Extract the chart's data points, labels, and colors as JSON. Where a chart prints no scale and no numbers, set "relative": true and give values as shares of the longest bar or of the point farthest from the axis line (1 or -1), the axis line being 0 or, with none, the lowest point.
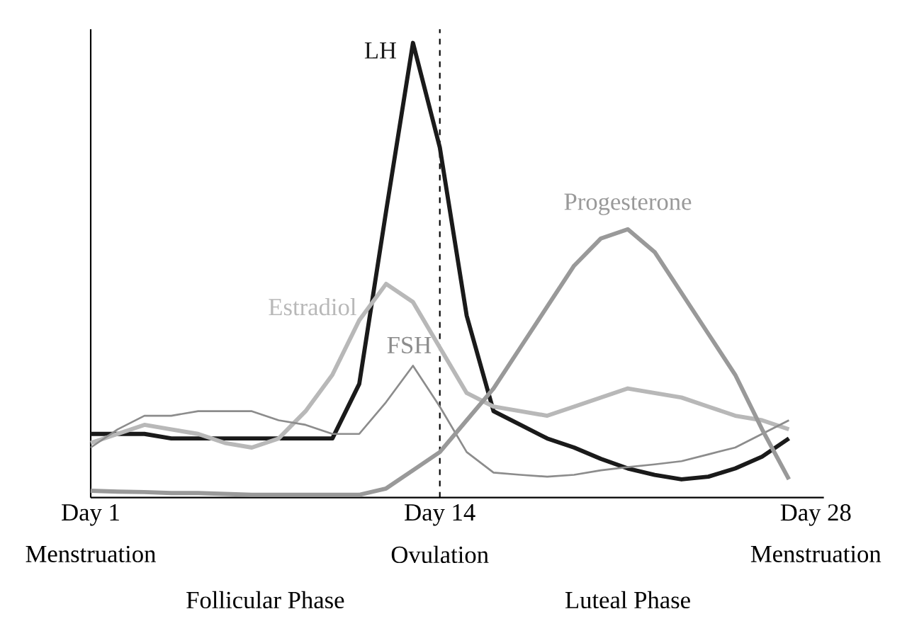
{
  "chart_data": {
    "type": "line",
    "relative": true,
    "categories": [
      "Day 1",
      null,
      null,
      null,
      null,
      null,
      null,
      null,
      null,
      null,
      null,
      null,
      null,
      "Day 14",
      null,
      null,
      null,
      null,
      null,
      null,
      null,
      null,
      null,
      null,
      null,
      null,
      null,
      "Day 28"
    ],
    "ref_lines": [
      {
        "axis": "x",
        "value": "Day 14",
        "line_style": "dashed",
        "color": "#000000"
      }
    ],
    "annotations": [
      "Menstruation",
      "Ovulation",
      "Menstruation",
      "Follicular Phase",
      "Luteal Phase"
    ],
    "series": [
      {
        "name": "LH",
        "color": "#1a1a1a",
        "values": [
          0.14,
          0.14,
          0.14,
          0.13,
          0.13,
          0.13,
          0.13,
          0.13,
          0.13,
          0.13,
          0.25,
          0.63,
          1,
          0.77,
          0.4,
          0.19,
          0.16,
          0.13,
          0.11,
          0.085,
          0.064,
          0.05,
          0.04,
          0.046,
          0.064,
          0.09,
          0.13,
          null
        ]
      },
      {
        "name": "Estradiol",
        "color": "#b8b8b8",
        "values": [
          0.12,
          0.14,
          0.16,
          0.15,
          0.14,
          0.12,
          0.11,
          0.13,
          0.19,
          0.27,
          0.39,
          0.47,
          0.43,
          0.33,
          0.23,
          0.2,
          0.19,
          0.18,
          0.2,
          0.22,
          0.24,
          0.23,
          0.22,
          0.2,
          0.18,
          0.17,
          0.15,
          null
        ]
      },
      {
        "name": "FSH",
        "color": "#8c8c8c",
        "values": [
          0.11,
          0.15,
          0.18,
          0.18,
          0.19,
          0.19,
          0.19,
          0.17,
          0.16,
          0.14,
          0.14,
          0.21,
          0.29,
          0.2,
          0.1,
          0.055,
          0.05,
          0.046,
          0.05,
          0.06,
          0.067,
          0.073,
          0.08,
          0.095,
          0.11,
          0.14,
          0.17,
          null
        ]
      },
      {
        "name": "Progesterone",
        "color": "#999999",
        "values": [
          0.015,
          0.013,
          0.012,
          0.01,
          0.01,
          0.008,
          0.006,
          0.006,
          0.006,
          0.006,
          0.006,
          0.02,
          0.06,
          0.1,
          0.17,
          0.24,
          0.33,
          0.42,
          0.51,
          0.57,
          0.59,
          0.54,
          0.45,
          0.36,
          0.27,
          0.15,
          0.04,
          null
        ]
      }
    ]
  }
}
